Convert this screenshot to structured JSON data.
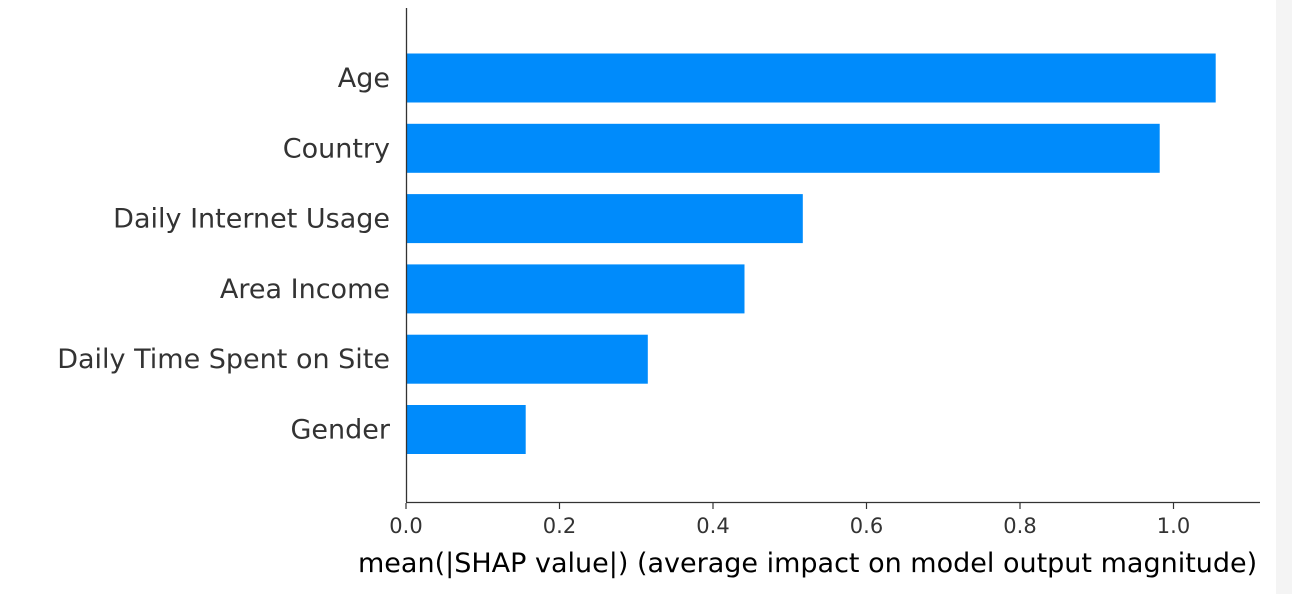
{
  "chart_data": {
    "type": "bar",
    "orientation": "horizontal",
    "categories": [
      "Age",
      "Country",
      "Daily Internet Usage",
      "Area Income",
      "Daily Time Spent on Site",
      "Gender"
    ],
    "values": [
      1.055,
      0.982,
      0.517,
      0.441,
      0.315,
      0.156
    ],
    "xlabel": "mean(|SHAP value|) (average impact on model output magnitude)",
    "ylabel": "",
    "title": "",
    "xlim": [
      0,
      1.11
    ],
    "xticks": [
      0.0,
      0.2,
      0.4,
      0.6,
      0.8,
      1.0
    ],
    "xtick_labels": [
      "0.0",
      "0.2",
      "0.4",
      "0.6",
      "0.8",
      "1.0"
    ],
    "grid": false,
    "colors": {
      "bar": "#008bfb",
      "axis": "#333333"
    }
  }
}
